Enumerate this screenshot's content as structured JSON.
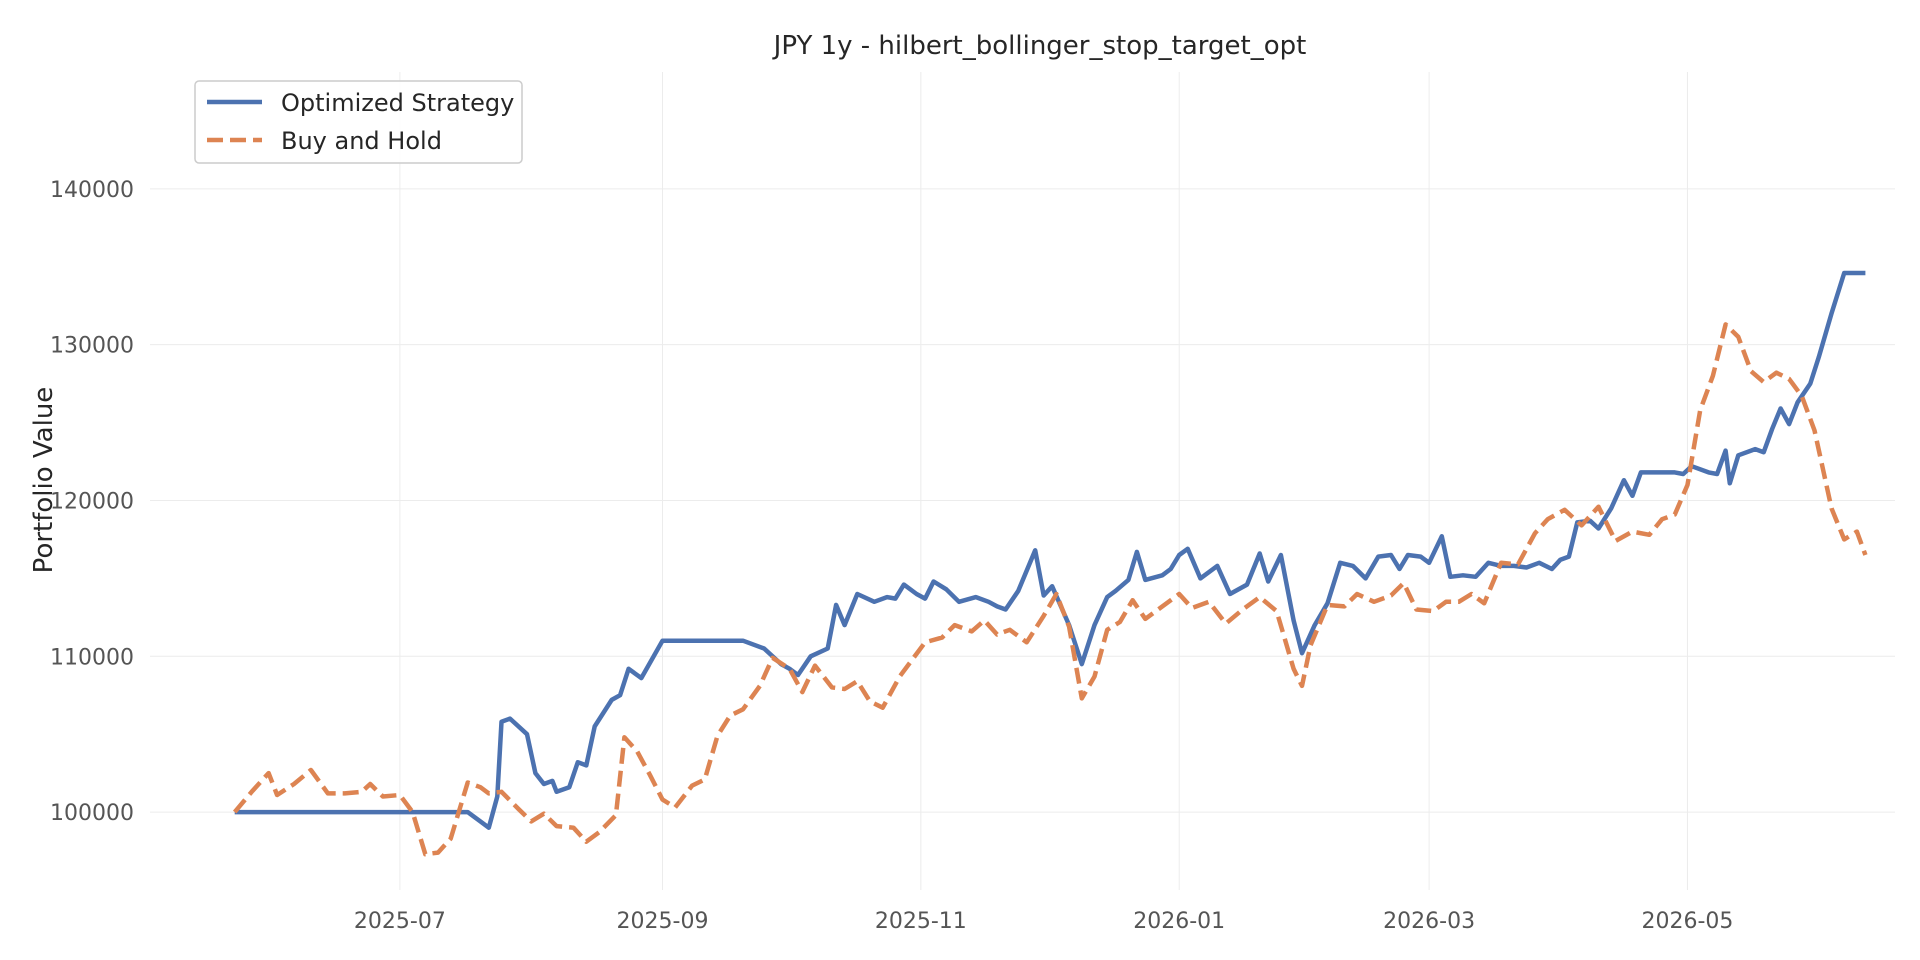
{
  "chart_data": {
    "type": "line",
    "title": "JPY 1y - hilbert_bollinger_stop_target_opt",
    "xlabel": "",
    "ylabel": "Portfolio Value",
    "x_range": [
      "2025-05-03",
      "2026-06-19"
    ],
    "ylim": [
      95000,
      147500
    ],
    "x_ticks": [
      "2025-07",
      "2025-09",
      "2025-11",
      "2026-01",
      "2026-03",
      "2026-05"
    ],
    "y_ticks": [
      100000,
      110000,
      120000,
      130000,
      140000
    ],
    "grid": true,
    "legend_position": "top-left",
    "series": [
      {
        "name": "Optimized Strategy",
        "color": "#4c72b0",
        "style": "solid",
        "points": [
          [
            "2025-05-23",
            100000
          ],
          [
            "2025-06-15",
            100000
          ],
          [
            "2025-07-10",
            100000
          ],
          [
            "2025-07-17",
            100000
          ],
          [
            "2025-07-20",
            99400
          ],
          [
            "2025-07-22",
            99000
          ],
          [
            "2025-07-24",
            101000
          ],
          [
            "2025-07-25",
            105800
          ],
          [
            "2025-07-27",
            106000
          ],
          [
            "2025-07-31",
            105000
          ],
          [
            "2025-08-02",
            102500
          ],
          [
            "2025-08-04",
            101800
          ],
          [
            "2025-08-06",
            102000
          ],
          [
            "2025-08-07",
            101300
          ],
          [
            "2025-08-10",
            101600
          ],
          [
            "2025-08-12",
            103200
          ],
          [
            "2025-08-14",
            103000
          ],
          [
            "2025-08-16",
            105500
          ],
          [
            "2025-08-20",
            107200
          ],
          [
            "2025-08-22",
            107500
          ],
          [
            "2025-08-24",
            109200
          ],
          [
            "2025-08-27",
            108600
          ],
          [
            "2025-09-01",
            111000
          ],
          [
            "2025-09-06",
            111000
          ],
          [
            "2025-09-20",
            111000
          ],
          [
            "2025-09-25",
            110500
          ],
          [
            "2025-09-29",
            109500
          ],
          [
            "2025-10-01",
            109200
          ],
          [
            "2025-10-03",
            108800
          ],
          [
            "2025-10-06",
            110000
          ],
          [
            "2025-10-10",
            110500
          ],
          [
            "2025-10-12",
            113300
          ],
          [
            "2025-10-14",
            112000
          ],
          [
            "2025-10-17",
            114000
          ],
          [
            "2025-10-21",
            113500
          ],
          [
            "2025-10-24",
            113800
          ],
          [
            "2025-10-26",
            113700
          ],
          [
            "2025-10-28",
            114600
          ],
          [
            "2025-10-31",
            114000
          ],
          [
            "2025-11-02",
            113700
          ],
          [
            "2025-11-04",
            114800
          ],
          [
            "2025-11-07",
            114300
          ],
          [
            "2025-11-10",
            113500
          ],
          [
            "2025-11-14",
            113800
          ],
          [
            "2025-11-17",
            113500
          ],
          [
            "2025-11-19",
            113200
          ],
          [
            "2025-11-21",
            113000
          ],
          [
            "2025-11-24",
            114200
          ],
          [
            "2025-11-26",
            115500
          ],
          [
            "2025-11-28",
            116800
          ],
          [
            "2025-11-30",
            113900
          ],
          [
            "2025-12-02",
            114500
          ],
          [
            "2025-12-06",
            112000
          ],
          [
            "2025-12-09",
            109500
          ],
          [
            "2025-12-12",
            112000
          ],
          [
            "2025-12-15",
            113800
          ],
          [
            "2025-12-17",
            114200
          ],
          [
            "2025-12-20",
            114900
          ],
          [
            "2025-12-22",
            116700
          ],
          [
            "2025-12-24",
            114900
          ],
          [
            "2025-12-28",
            115200
          ],
          [
            "2025-12-30",
            115600
          ],
          [
            "2026-01-01",
            116500
          ],
          [
            "2026-01-03",
            116900
          ],
          [
            "2026-01-06",
            115000
          ],
          [
            "2026-01-10",
            115800
          ],
          [
            "2026-01-13",
            114000
          ],
          [
            "2026-01-17",
            114600
          ],
          [
            "2026-01-20",
            116600
          ],
          [
            "2026-01-22",
            114800
          ],
          [
            "2026-01-25",
            116500
          ],
          [
            "2026-01-28",
            112300
          ],
          [
            "2026-01-30",
            110200
          ],
          [
            "2026-02-02",
            112000
          ],
          [
            "2026-02-05",
            113400
          ],
          [
            "2026-02-08",
            116000
          ],
          [
            "2026-02-11",
            115800
          ],
          [
            "2026-02-14",
            115000
          ],
          [
            "2026-02-17",
            116400
          ],
          [
            "2026-02-20",
            116500
          ],
          [
            "2026-02-22",
            115600
          ],
          [
            "2026-02-24",
            116500
          ],
          [
            "2026-02-27",
            116400
          ],
          [
            "2026-03-01",
            116000
          ],
          [
            "2026-03-04",
            117700
          ],
          [
            "2026-03-06",
            115100
          ],
          [
            "2026-03-09",
            115200
          ],
          [
            "2026-03-12",
            115100
          ],
          [
            "2026-03-15",
            116000
          ],
          [
            "2026-03-18",
            115800
          ],
          [
            "2026-03-21",
            115800
          ],
          [
            "2026-03-24",
            115700
          ],
          [
            "2026-03-27",
            116000
          ],
          [
            "2026-03-30",
            115600
          ],
          [
            "2026-04-01",
            116200
          ],
          [
            "2026-04-03",
            116400
          ],
          [
            "2026-04-05",
            118600
          ],
          [
            "2026-04-08",
            118700
          ],
          [
            "2026-04-10",
            118200
          ],
          [
            "2026-04-13",
            119500
          ],
          [
            "2026-04-16",
            121300
          ],
          [
            "2026-04-18",
            120300
          ],
          [
            "2026-04-20",
            121800
          ],
          [
            "2026-04-24",
            121800
          ],
          [
            "2026-04-28",
            121800
          ],
          [
            "2026-04-30",
            121700
          ],
          [
            "2026-05-02",
            122200
          ],
          [
            "2026-05-06",
            121800
          ],
          [
            "2026-05-08",
            121700
          ],
          [
            "2026-05-10",
            123200
          ],
          [
            "2026-05-11",
            121100
          ],
          [
            "2026-05-13",
            122900
          ],
          [
            "2026-05-17",
            123300
          ],
          [
            "2026-05-19",
            123100
          ],
          [
            "2026-05-21",
            124600
          ],
          [
            "2026-05-23",
            125900
          ],
          [
            "2026-05-25",
            124900
          ],
          [
            "2026-05-27",
            126300
          ],
          [
            "2026-05-30",
            127500
          ],
          [
            "2026-06-01",
            129200
          ],
          [
            "2026-06-04",
            132000
          ],
          [
            "2026-06-07",
            134600
          ],
          [
            "2026-06-12",
            134600
          ]
        ]
      },
      {
        "name": "Buy and Hold",
        "color": "#dd8452",
        "style": "dashed",
        "points": [
          [
            "2025-05-23",
            100000
          ],
          [
            "2025-05-27",
            101300
          ],
          [
            "2025-05-31",
            102500
          ],
          [
            "2025-06-02",
            101100
          ],
          [
            "2025-06-06",
            101800
          ],
          [
            "2025-06-10",
            102700
          ],
          [
            "2025-06-14",
            101200
          ],
          [
            "2025-06-18",
            101200
          ],
          [
            "2025-06-22",
            101300
          ],
          [
            "2025-06-24",
            101800
          ],
          [
            "2025-06-27",
            101000
          ],
          [
            "2025-07-01",
            101100
          ],
          [
            "2025-07-04",
            100000
          ],
          [
            "2025-07-07",
            97300
          ],
          [
            "2025-07-10",
            97400
          ],
          [
            "2025-07-13",
            98300
          ],
          [
            "2025-07-17",
            101900
          ],
          [
            "2025-07-20",
            101600
          ],
          [
            "2025-07-22",
            101200
          ],
          [
            "2025-07-25",
            101300
          ],
          [
            "2025-07-29",
            100200
          ],
          [
            "2025-08-01",
            99400
          ],
          [
            "2025-08-04",
            99900
          ],
          [
            "2025-08-07",
            99100
          ],
          [
            "2025-08-11",
            99000
          ],
          [
            "2025-08-14",
            98100
          ],
          [
            "2025-08-17",
            98700
          ],
          [
            "2025-08-21",
            99800
          ],
          [
            "2025-08-23",
            104800
          ],
          [
            "2025-08-26",
            103900
          ],
          [
            "2025-08-29",
            102400
          ],
          [
            "2025-09-01",
            100800
          ],
          [
            "2025-09-04",
            100300
          ],
          [
            "2025-09-08",
            101700
          ],
          [
            "2025-09-11",
            102100
          ],
          [
            "2025-09-14",
            104900
          ],
          [
            "2025-09-17",
            106200
          ],
          [
            "2025-09-20",
            106600
          ],
          [
            "2025-09-24",
            108100
          ],
          [
            "2025-09-27",
            109900
          ],
          [
            "2025-10-01",
            109200
          ],
          [
            "2025-10-04",
            107700
          ],
          [
            "2025-10-07",
            109400
          ],
          [
            "2025-10-11",
            108000
          ],
          [
            "2025-10-14",
            107900
          ],
          [
            "2025-10-17",
            108400
          ],
          [
            "2025-10-20",
            107100
          ],
          [
            "2025-10-23",
            106700
          ],
          [
            "2025-10-27",
            108700
          ],
          [
            "2025-10-30",
            109800
          ],
          [
            "2025-11-02",
            110900
          ],
          [
            "2025-11-06",
            111200
          ],
          [
            "2025-11-09",
            112000
          ],
          [
            "2025-11-13",
            111600
          ],
          [
            "2025-11-16",
            112300
          ],
          [
            "2025-11-19",
            111400
          ],
          [
            "2025-11-22",
            111700
          ],
          [
            "2025-11-26",
            110900
          ],
          [
            "2025-11-30",
            112600
          ],
          [
            "2025-12-03",
            114000
          ],
          [
            "2025-12-06",
            111900
          ],
          [
            "2025-12-09",
            107300
          ],
          [
            "2025-12-12",
            108700
          ],
          [
            "2025-12-15",
            111700
          ],
          [
            "2025-12-18",
            112200
          ],
          [
            "2025-12-21",
            113600
          ],
          [
            "2025-12-24",
            112400
          ],
          [
            "2025-12-28",
            113200
          ],
          [
            "2026-01-01",
            114000
          ],
          [
            "2026-01-04",
            113100
          ],
          [
            "2026-01-08",
            113500
          ],
          [
            "2026-01-12",
            112100
          ],
          [
            "2026-01-16",
            113000
          ],
          [
            "2026-01-20",
            113800
          ],
          [
            "2026-01-24",
            112900
          ],
          [
            "2026-01-28",
            109200
          ],
          [
            "2026-01-30",
            108100
          ],
          [
            "2026-02-01",
            110700
          ],
          [
            "2026-02-05",
            113300
          ],
          [
            "2026-02-09",
            113200
          ],
          [
            "2026-02-12",
            114000
          ],
          [
            "2026-02-16",
            113500
          ],
          [
            "2026-02-20",
            113900
          ],
          [
            "2026-02-23",
            114700
          ],
          [
            "2026-02-26",
            113000
          ],
          [
            "2026-03-02",
            112900
          ],
          [
            "2026-03-05",
            113500
          ],
          [
            "2026-03-08",
            113500
          ],
          [
            "2026-03-11",
            114000
          ],
          [
            "2026-03-14",
            113400
          ],
          [
            "2026-03-18",
            116000
          ],
          [
            "2026-03-22",
            115900
          ],
          [
            "2026-03-26",
            117900
          ],
          [
            "2026-03-29",
            118800
          ],
          [
            "2026-04-02",
            119400
          ],
          [
            "2026-04-06",
            118400
          ],
          [
            "2026-04-10",
            119600
          ],
          [
            "2026-04-14",
            117400
          ],
          [
            "2026-04-18",
            118000
          ],
          [
            "2026-04-22",
            117800
          ],
          [
            "2026-04-25",
            118800
          ],
          [
            "2026-04-28",
            119100
          ],
          [
            "2026-05-01",
            121000
          ],
          [
            "2026-05-04",
            125800
          ],
          [
            "2026-05-07",
            128000
          ],
          [
            "2026-05-10",
            131300
          ],
          [
            "2026-05-13",
            130500
          ],
          [
            "2026-05-16",
            128300
          ],
          [
            "2026-05-19",
            127600
          ],
          [
            "2026-05-22",
            128200
          ],
          [
            "2026-05-25",
            127800
          ],
          [
            "2026-05-28",
            126700
          ],
          [
            "2026-05-31",
            124500
          ],
          [
            "2026-06-02",
            122000
          ],
          [
            "2026-06-04",
            119500
          ],
          [
            "2026-06-07",
            117500
          ],
          [
            "2026-06-10",
            118000
          ],
          [
            "2026-06-12",
            116500
          ]
        ]
      }
    ]
  }
}
